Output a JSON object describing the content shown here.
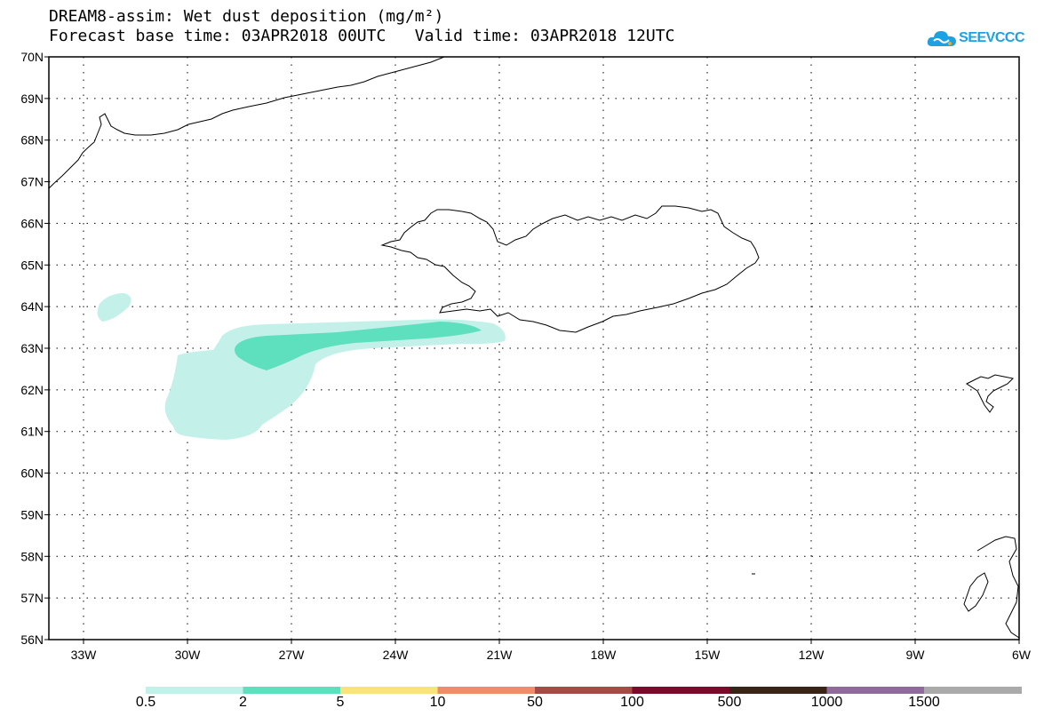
{
  "title_line1": "DREAM8-assim: Wet dust deposition (mg/m²)",
  "title_line2": "Forecast base time: 03APR2018 00UTC   Valid time: 03APR2018 12UTC",
  "logo": {
    "text": "SEEVCCC",
    "icon": "cloud-icon",
    "color": "#1da1e2"
  },
  "map": {
    "lon_range": [
      -34.0,
      -6.0
    ],
    "lat_range": [
      56.0,
      70.0
    ],
    "lat_ticks": [
      "56N",
      "57N",
      "58N",
      "59N",
      "60N",
      "61N",
      "62N",
      "63N",
      "64N",
      "65N",
      "66N",
      "67N",
      "68N",
      "69N",
      "70N"
    ],
    "lon_ticks": [
      "33W",
      "30W",
      "27W",
      "24W",
      "21W",
      "18W",
      "15W",
      "12W",
      "9W",
      "6W"
    ],
    "grid": "dotted",
    "land_fill": "none",
    "deposition_areas": [
      {
        "level": "0.5-2",
        "color": "#c3f1ea",
        "description": "light deposition"
      },
      {
        "level": "2-5",
        "color": "#5ee0be",
        "description": "moderate deposition"
      }
    ]
  },
  "legend": {
    "colors": [
      "#c3f1ea",
      "#5ee0be",
      "#f9e47a",
      "#f08c67",
      "#a34b44",
      "#7c0a2b",
      "#3a2416",
      "#8e6b9b",
      "#aaaaaa"
    ],
    "labels": [
      "0.5",
      "2",
      "5",
      "10",
      "50",
      "100",
      "500",
      "1000",
      "1500"
    ]
  }
}
